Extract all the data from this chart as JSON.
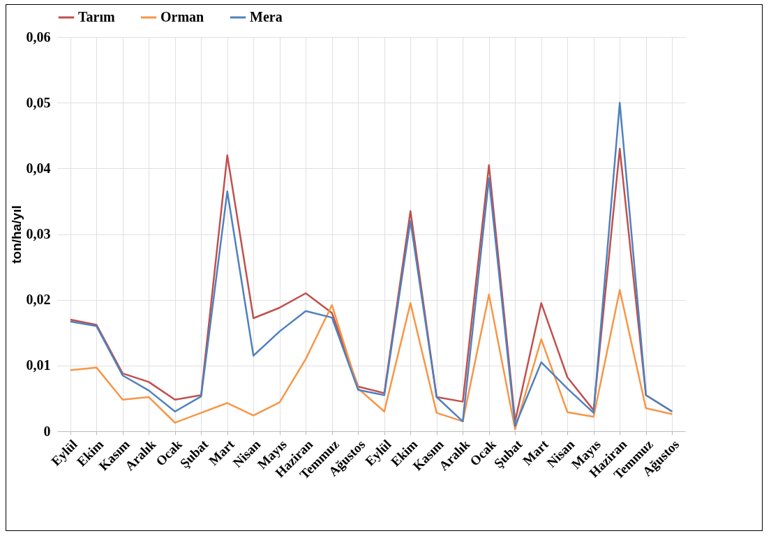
{
  "chart_data": {
    "type": "line",
    "ylabel": "ton/ha/yıl",
    "categories": [
      "Eylül",
      "Ekim",
      "Kasım",
      "Aralık",
      "Ocak",
      "Şubat",
      "Mart",
      "Nisan",
      "Mayıs",
      "Haziran",
      "Temmuz",
      "Ağustos",
      "Eylül",
      "Ekim",
      "Kasım",
      "Aralık",
      "Ocak",
      "Şubat",
      "Mart",
      "Nisan",
      "Mayıs",
      "Haziran",
      "Temmuz",
      "Ağustos"
    ],
    "series": [
      {
        "name": "Tarım",
        "color": "#c0504d",
        "values": [
          0.017,
          0.0162,
          0.0088,
          0.0075,
          0.0048,
          0.0055,
          0.042,
          0.0172,
          0.0188,
          0.021,
          0.018,
          0.0068,
          0.0058,
          0.0335,
          0.0052,
          0.0045,
          0.0405,
          0.0015,
          0.0195,
          0.0082,
          0.0032,
          0.043,
          0.0055,
          0.003
        ]
      },
      {
        "name": "Orman",
        "color": "#f79646",
        "values": [
          0.0093,
          0.0097,
          0.0048,
          0.0052,
          0.0013,
          0.0028,
          0.0043,
          0.0024,
          0.0044,
          0.011,
          0.0192,
          0.0065,
          0.003,
          0.0195,
          0.0028,
          0.0015,
          0.0208,
          0.0003,
          0.014,
          0.0029,
          0.0022,
          0.0215,
          0.0035,
          0.0026
        ]
      },
      {
        "name": "Mera",
        "color": "#4f81bd",
        "values": [
          0.0167,
          0.016,
          0.0085,
          0.0062,
          0.003,
          0.0053,
          0.0365,
          0.0115,
          0.0152,
          0.0183,
          0.0173,
          0.0063,
          0.0055,
          0.032,
          0.0052,
          0.0015,
          0.0385,
          0.0008,
          0.0105,
          0.0065,
          0.0028,
          0.05,
          0.0055,
          0.003
        ]
      }
    ],
    "ylim": [
      0,
      0.06
    ],
    "yticks": [
      0,
      {
        "value": 0.01,
        "label": "0,01"
      },
      {
        "value": 0.02,
        "label": "0,02"
      },
      {
        "value": 0.03,
        "label": "0,03"
      },
      {
        "value": 0.04,
        "label": "0,04"
      },
      {
        "value": 0.05,
        "label": "0,05"
      },
      {
        "value": 0.06,
        "label": "0,06"
      }
    ],
    "grid": true,
    "legend": "top",
    "marker": "none",
    "line_style": "solid"
  }
}
